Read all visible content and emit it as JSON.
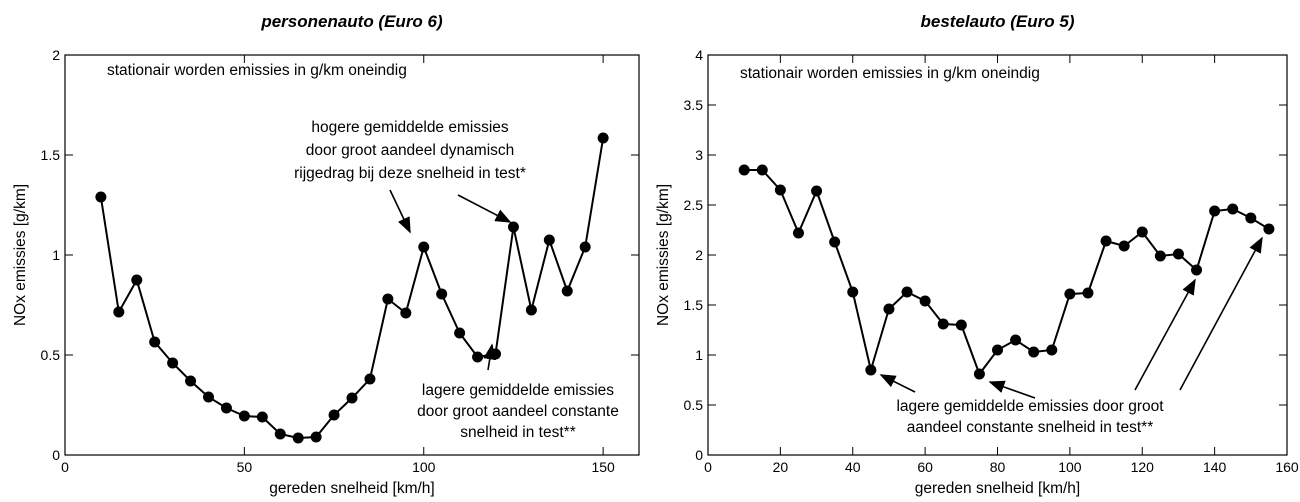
{
  "chart_data": [
    {
      "type": "line",
      "title": "personenauto (Euro 6)",
      "x_label": "gereden snelheid [km/h]",
      "y_label": "NOx emissies [g/km]",
      "x": [
        10,
        15,
        20,
        25,
        30,
        35,
        40,
        45,
        50,
        55,
        60,
        65,
        70,
        75,
        80,
        85,
        90,
        95,
        100,
        105,
        110,
        115,
        120,
        125,
        130,
        135,
        140,
        145,
        150
      ],
      "series": [
        {
          "color": "#000000",
          "values": [
            1.29,
            0.715,
            0.875,
            0.565,
            0.46,
            0.37,
            0.29,
            0.235,
            0.195,
            0.19,
            0.105,
            0.085,
            0.09,
            0.2,
            0.285,
            0.38,
            0.78,
            0.71,
            1.04,
            0.805,
            0.61,
            0.49,
            0.505,
            1.14,
            0.725,
            1.075,
            0.82,
            1.04,
            1.585
          ]
        }
      ],
      "xlim": [
        0,
        160
      ],
      "ylim": [
        0,
        2
      ],
      "xticks": [
        0,
        50,
        100,
        150
      ],
      "yticks": [
        0,
        0.5,
        1,
        1.5,
        2
      ],
      "annotations": [
        {
          "lines": [
            "stationair worden emissies in g/km oneindig"
          ]
        },
        {
          "lines": [
            "hogere gemiddelde  emissies",
            "door groot aandeel dynamisch",
            "rijgedrag bij deze snelheid in test*"
          ]
        },
        {
          "lines": [
            "lagere gemiddelde  emissies",
            "door groot aandeel constante",
            "snelheid in test**"
          ]
        }
      ]
    },
    {
      "type": "line",
      "title": "bestelauto (Euro 5)",
      "x_label": "gereden snelheid [km/h]",
      "y_label": "NOx emissies [g/km]",
      "x": [
        10,
        15,
        20,
        25,
        30,
        35,
        40,
        45,
        50,
        55,
        60,
        65,
        70,
        75,
        80,
        85,
        90,
        95,
        100,
        105,
        110,
        115,
        120,
        125,
        130,
        135,
        140,
        145,
        150,
        155
      ],
      "series": [
        {
          "color": "#000000",
          "values": [
            2.85,
            2.85,
            2.65,
            2.22,
            2.64,
            2.13,
            1.63,
            0.85,
            1.46,
            1.63,
            1.54,
            1.31,
            1.3,
            0.81,
            1.05,
            1.15,
            1.03,
            1.05,
            1.61,
            1.62,
            2.14,
            2.09,
            2.23,
            1.99,
            2.01,
            1.85,
            2.44,
            2.46,
            2.37,
            2.26
          ]
        }
      ],
      "xlim": [
        0,
        160
      ],
      "ylim": [
        0,
        4
      ],
      "xticks": [
        0,
        20,
        40,
        60,
        80,
        100,
        120,
        140,
        160
      ],
      "yticks": [
        0,
        0.5,
        1,
        1.5,
        2,
        2.5,
        3,
        3.5,
        4
      ],
      "annotations": [
        {
          "lines": [
            "stationair worden emissies in g/km oneindig"
          ]
        },
        {
          "lines": [
            "lagere gemiddelde  emissies door groot",
            "aandeel constante snelheid in test**"
          ]
        }
      ]
    }
  ]
}
